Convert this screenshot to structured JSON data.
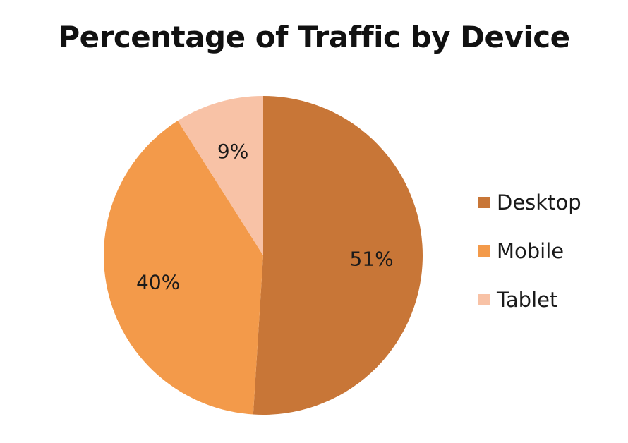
{
  "chart_data": {
    "type": "pie",
    "title": "Percentage of Traffic by Device",
    "start_angle_deg": 0,
    "direction": "clockwise",
    "slices": [
      {
        "name": "Desktop",
        "value": 51,
        "label": "51%",
        "color": "#c87637"
      },
      {
        "name": "Mobile",
        "value": 40,
        "label": "40%",
        "color": "#f39a4a"
      },
      {
        "name": "Tablet",
        "value": 9,
        "label": "9%",
        "color": "#f8c2a6"
      }
    ],
    "legend_position": "right"
  }
}
